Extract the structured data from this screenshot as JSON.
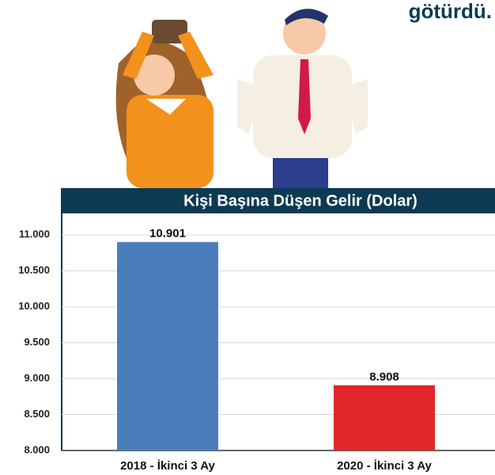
{
  "brand": "götürdü.",
  "chart_data": {
    "type": "bar",
    "title": "Kişi Başına Düşen Gelir (Dolar)",
    "categories": [
      "2018 - İkinci 3 Ay",
      "2020 - İkinci 3 Ay"
    ],
    "values": [
      10901,
      8908
    ],
    "value_labels": [
      "10.901",
      "8.908"
    ],
    "colors": [
      "#4a7ebb",
      "#e0262a"
    ],
    "ylim": [
      8000,
      11300
    ],
    "yticks": [
      {
        "value": 8000,
        "label": "8.000"
      },
      {
        "value": 8500,
        "label": "8.500"
      },
      {
        "value": 9000,
        "label": "9.000"
      },
      {
        "value": 9500,
        "label": "9.500"
      },
      {
        "value": 10000,
        "label": "10.000"
      },
      {
        "value": 10500,
        "label": "10.500"
      },
      {
        "value": 11000,
        "label": "11.000"
      }
    ],
    "grid": true
  }
}
